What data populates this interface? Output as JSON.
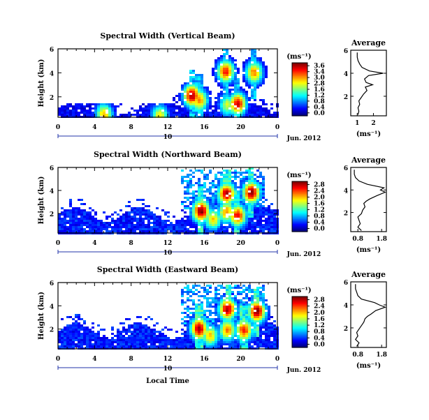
{
  "chart_data": [
    {
      "type": "heatmap",
      "title": "Spectral Width (Vertical Beam)",
      "ylabel": "Height (km)",
      "xlabel": "",
      "x_ticks": [
        "0",
        "4",
        "8",
        "12",
        "16",
        "20",
        "0"
      ],
      "y_ticks": [
        "2",
        "4",
        "6"
      ],
      "xlim": [
        0,
        24
      ],
      "ylim": [
        0.3,
        6.0
      ],
      "date_label": "Jun. 2012",
      "day_label": "10",
      "colorbar": {
        "unit": "(ms⁻¹)",
        "ticks": [
          "3.6",
          "3.4",
          "3.0",
          "2.8",
          "1.6",
          "1.2",
          "0.8",
          "0.4",
          "0.0"
        ],
        "range": [
          0,
          3.6
        ]
      },
      "blobs": [
        {
          "x": 14.5,
          "y": 2.2,
          "v": 3.4
        },
        {
          "x": 15.3,
          "y": 1.8,
          "v": 2.6
        },
        {
          "x": 19.5,
          "y": 1.5,
          "v": 3.2
        },
        {
          "x": 18.2,
          "y": 4.2,
          "v": 3.0
        },
        {
          "x": 21.3,
          "y": 4.1,
          "v": 2.6
        },
        {
          "x": 18.4,
          "y": 1.4,
          "v": 2.0
        },
        {
          "x": 4.9,
          "y": 0.6,
          "v": 2.4
        },
        {
          "x": 11.0,
          "y": 0.5,
          "v": 2.2
        }
      ]
    },
    {
      "type": "heatmap",
      "title": "Spectral Width (Northward Beam)",
      "ylabel": "Height (km)",
      "xlabel": "",
      "x_ticks": [
        "0",
        "4",
        "8",
        "12",
        "16",
        "20",
        "0"
      ],
      "y_ticks": [
        "2",
        "4",
        "6"
      ],
      "xlim": [
        0,
        24
      ],
      "ylim": [
        0.3,
        6.0
      ],
      "date_label": "Jun. 2012",
      "day_label": "10",
      "colorbar": {
        "unit": "(ms⁻¹)",
        "ticks": [
          "2.8",
          "2.4",
          "2.0",
          "1.6",
          "1.2",
          "0.8",
          "0.4",
          "0.0"
        ],
        "range": [
          0,
          2.8
        ]
      },
      "blobs": [
        {
          "x": 15.5,
          "y": 2.3,
          "v": 2.7
        },
        {
          "x": 18.3,
          "y": 3.8,
          "v": 2.6
        },
        {
          "x": 21.0,
          "y": 3.9,
          "v": 2.7
        },
        {
          "x": 19.5,
          "y": 1.9,
          "v": 2.4
        },
        {
          "x": 18.3,
          "y": 2.2,
          "v": 2.0
        },
        {
          "x": 16.8,
          "y": 1.6,
          "v": 1.8
        }
      ]
    },
    {
      "type": "heatmap",
      "title": "Spectral Width (Eastward Beam)",
      "ylabel": "Height (km)",
      "xlabel": "Local Time",
      "x_ticks": [
        "0",
        "4",
        "8",
        "12",
        "16",
        "20",
        "0"
      ],
      "y_ticks": [
        "2",
        "4",
        "6"
      ],
      "xlim": [
        0,
        24
      ],
      "ylim": [
        0.3,
        6.0
      ],
      "date_label": "Jun. 2012",
      "day_label": "10",
      "colorbar": {
        "unit": "(ms⁻¹)",
        "ticks": [
          "2.8",
          "2.4",
          "2.0",
          "1.6",
          "1.2",
          "0.8",
          "0.4",
          "0.0"
        ],
        "range": [
          0,
          2.8
        ]
      },
      "blobs": [
        {
          "x": 15.3,
          "y": 2.1,
          "v": 2.6
        },
        {
          "x": 18.4,
          "y": 3.8,
          "v": 2.6
        },
        {
          "x": 21.6,
          "y": 3.6,
          "v": 2.7
        },
        {
          "x": 20.2,
          "y": 2.0,
          "v": 2.3
        },
        {
          "x": 18.4,
          "y": 2.0,
          "v": 2.0
        },
        {
          "x": 16.5,
          "y": 1.5,
          "v": 1.8
        }
      ]
    },
    {
      "type": "line",
      "title": "Average",
      "xlabel": "(ms⁻¹)",
      "ylabel": "",
      "x_ticks": [
        "1",
        "2"
      ],
      "y_ticks": [
        "2",
        "4",
        "6"
      ],
      "xlim": [
        0.6,
        2.8
      ],
      "ylim": [
        0.3,
        6.0
      ],
      "profile": {
        "y": [
          0.4,
          0.7,
          1.0,
          1.3,
          1.6,
          1.9,
          2.2,
          2.5,
          2.8,
          3.0,
          3.2,
          3.5,
          3.8,
          4.0,
          4.2,
          4.5,
          4.8,
          5.1,
          5.4,
          5.8
        ],
        "x": [
          1.05,
          1.1,
          1.05,
          1.15,
          1.1,
          1.25,
          1.4,
          1.6,
          1.5,
          1.95,
          1.55,
          1.45,
          1.7,
          2.6,
          1.75,
          1.3,
          1.15,
          1.05,
          1.0,
          1.0
        ]
      }
    },
    {
      "type": "line",
      "title": "Average",
      "xlabel": "(ms⁻¹)",
      "ylabel": "",
      "x_ticks": [
        "0.8",
        "1.8"
      ],
      "y_ticks": [
        "2",
        "4",
        "6"
      ],
      "xlim": [
        0.5,
        2.0
      ],
      "ylim": [
        0.3,
        6.0
      ],
      "profile": {
        "y": [
          0.4,
          0.7,
          1.0,
          1.3,
          1.6,
          1.9,
          2.2,
          2.5,
          2.8,
          3.0,
          3.2,
          3.5,
          3.8,
          4.0,
          4.2,
          4.5,
          4.8,
          5.1,
          5.4,
          5.8
        ],
        "x": [
          0.95,
          0.8,
          0.9,
          0.85,
          0.8,
          0.95,
          1.0,
          1.1,
          1.05,
          1.15,
          1.3,
          1.6,
          1.95,
          1.75,
          1.9,
          1.2,
          0.85,
          0.7,
          0.65,
          0.65
        ]
      }
    },
    {
      "type": "line",
      "title": "Average",
      "xlabel": "(ms⁻¹)",
      "ylabel": "",
      "x_ticks": [
        "0.8",
        "1.8"
      ],
      "y_ticks": [
        "2",
        "4",
        "6"
      ],
      "xlim": [
        0.5,
        2.0
      ],
      "ylim": [
        0.3,
        6.0
      ],
      "profile": {
        "y": [
          0.4,
          0.7,
          1.0,
          1.3,
          1.6,
          1.9,
          2.2,
          2.5,
          2.8,
          3.0,
          3.2,
          3.5,
          3.8,
          4.0,
          4.2,
          4.5,
          4.8,
          5.1,
          5.4,
          5.8
        ],
        "x": [
          0.75,
          0.85,
          0.7,
          0.8,
          0.75,
          0.85,
          0.95,
          1.05,
          1.1,
          1.2,
          1.35,
          1.55,
          1.95,
          1.7,
          1.5,
          0.95,
          0.8,
          0.75,
          0.7,
          0.7
        ]
      }
    }
  ]
}
